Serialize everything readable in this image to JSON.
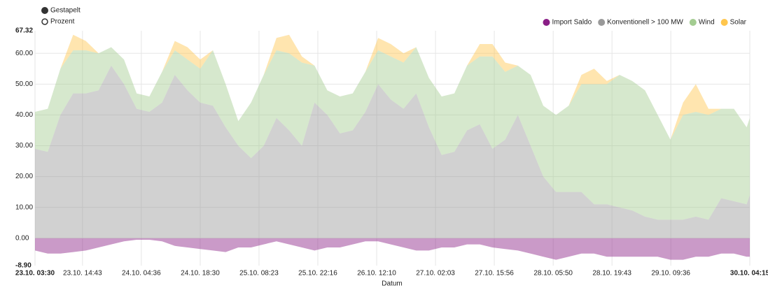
{
  "controls": {
    "options": [
      "Gestapelt",
      "Prozent"
    ],
    "selected": 0
  },
  "chart_data": {
    "type": "stacked_area",
    "xlabel": "Datum",
    "x": [
      "23.10. 03:30",
      "23.10. 06:30",
      "23.10. 09:30",
      "23.10. 12:30",
      "23.10. 15:30",
      "23.10. 18:30",
      "23.10. 21:30",
      "24.10. 00:30",
      "24.10. 03:30",
      "24.10. 06:30",
      "24.10. 09:30",
      "24.10. 12:30",
      "24.10. 15:30",
      "24.10. 18:30",
      "24.10. 21:30",
      "25.10. 00:30",
      "25.10. 03:30",
      "25.10. 06:30",
      "25.10. 09:30",
      "25.10. 12:30",
      "25.10. 15:30",
      "25.10. 18:30",
      "25.10. 21:30",
      "26.10. 00:30",
      "26.10. 03:30",
      "26.10. 06:30",
      "26.10. 09:30",
      "26.10. 12:30",
      "26.10. 15:30",
      "26.10. 18:30",
      "26.10. 21:30",
      "27.10. 00:30",
      "27.10. 03:30",
      "27.10. 06:30",
      "27.10. 09:30",
      "27.10. 12:30",
      "27.10. 15:30",
      "27.10. 18:30",
      "27.10. 21:30",
      "28.10. 00:30",
      "28.10. 03:30",
      "28.10. 06:30",
      "28.10. 09:30",
      "28.10. 12:30",
      "28.10. 15:30",
      "28.10. 18:30",
      "28.10. 21:30",
      "29.10. 00:30",
      "29.10. 03:30",
      "29.10. 06:30",
      "29.10. 09:30",
      "29.10. 12:30",
      "29.10. 15:30",
      "29.10. 18:30",
      "29.10. 21:30",
      "30.10. 00:30",
      "30.10. 03:30",
      "30.10. 04:15"
    ],
    "series": [
      {
        "name": "Import Saldo",
        "color": "#8a1e86",
        "values": [
          -4,
          -5,
          -5,
          -4.5,
          -4,
          -3,
          -2,
          -1,
          -0.5,
          -0.5,
          -1,
          -2.5,
          -3,
          -3.5,
          -4,
          -4.5,
          -3,
          -3,
          -2,
          -1,
          -2,
          -3,
          -4,
          -3,
          -3,
          -2,
          -1,
          -1,
          -2,
          -3,
          -4,
          -4,
          -3,
          -3,
          -2,
          -2,
          -3,
          -3.5,
          -4,
          -5,
          -6,
          -7,
          -6,
          -5,
          -5,
          -6,
          -6,
          -6,
          -6,
          -6,
          -7,
          -7,
          -6,
          -6,
          -5,
          -5,
          -6,
          -6
        ]
      },
      {
        "name": "Konventionell > 100 MW",
        "color": "#999999",
        "values": [
          29,
          28,
          40,
          47,
          47,
          48,
          56,
          50,
          42,
          41,
          44,
          53,
          48,
          44,
          43,
          36,
          30,
          26,
          30,
          39,
          35,
          30,
          44,
          40,
          34,
          35,
          41,
          50,
          45,
          42,
          47,
          36,
          27,
          28,
          35,
          37,
          29,
          32,
          40,
          30,
          20,
          15,
          15,
          15,
          11,
          11,
          10,
          9,
          7,
          6,
          6,
          6,
          7,
          6,
          13,
          12,
          11,
          14
        ]
      },
      {
        "name": "Wind",
        "color": "#a3cc91",
        "values": [
          12,
          14,
          15,
          14,
          14,
          12,
          6,
          8,
          5,
          5,
          10,
          8,
          10,
          11,
          18,
          14,
          8,
          18,
          23,
          22,
          25,
          27,
          12,
          8,
          12,
          12,
          13,
          11,
          14,
          15,
          15,
          16,
          19,
          19,
          21,
          22,
          30,
          22,
          16,
          23,
          23,
          25,
          28,
          35,
          39,
          39,
          43,
          42,
          41,
          34,
          26,
          34,
          34,
          34,
          29,
          30,
          25,
          25
        ]
      },
      {
        "name": "Solar",
        "color": "#ffc64d",
        "values": [
          0,
          0,
          0,
          5,
          3,
          0,
          0,
          0,
          0,
          0,
          0,
          3,
          4,
          3,
          0,
          0,
          0,
          0,
          0,
          4,
          6,
          2,
          0,
          0,
          0,
          0,
          0,
          4,
          4,
          3,
          0,
          0,
          0,
          0,
          0,
          4,
          4,
          3,
          0,
          0,
          0,
          0,
          0,
          3,
          5,
          1,
          0,
          0,
          0,
          0,
          0,
          4,
          9,
          2,
          0,
          0,
          0,
          0
        ]
      }
    ],
    "xticks": [
      "23.10. 03:30",
      "23.10. 14:43",
      "24.10. 04:36",
      "24.10. 18:30",
      "25.10. 08:23",
      "25.10. 22:16",
      "26.10. 12:10",
      "27.10. 02:03",
      "27.10. 15:56",
      "28.10. 05:50",
      "28.10. 19:43",
      "29.10. 09:36",
      "30.10. 04:15"
    ],
    "ylim": [
      -8.9,
      67.32
    ],
    "yticks": [
      {
        "value": -8.9,
        "label": "-8.90"
      },
      {
        "value": 0,
        "label": "0.00"
      },
      {
        "value": 10,
        "label": "10.00"
      },
      {
        "value": 20,
        "label": "20.00"
      },
      {
        "value": 30,
        "label": "30.00"
      },
      {
        "value": 40,
        "label": "40.00"
      },
      {
        "value": 50,
        "label": "50.00"
      },
      {
        "value": 60,
        "label": "60.00"
      },
      {
        "value": 67.32,
        "label": "67.32"
      }
    ],
    "grid": true,
    "legend": "top-right"
  }
}
